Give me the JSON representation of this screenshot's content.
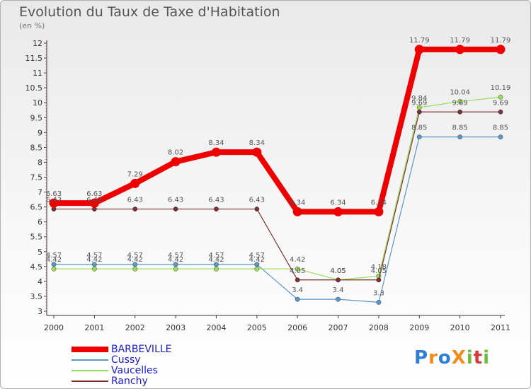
{
  "chart_data": {
    "type": "line",
    "title": "Evolution du Taux de Taxe d'Habitation",
    "unit_label": "(en %)",
    "x": [
      "2000",
      "2001",
      "2002",
      "2003",
      "2004",
      "2005",
      "2006",
      "2007",
      "2008",
      "2009",
      "2010",
      "2011"
    ],
    "ylim": [
      3,
      12
    ],
    "yticks": [
      3,
      3.5,
      4,
      4.5,
      5,
      5.5,
      6,
      6.5,
      7,
      7.5,
      8,
      8.5,
      9,
      9.5,
      10,
      10.5,
      11,
      11.5,
      12
    ],
    "grid": false,
    "legend_position": "bottom-left",
    "series": [
      {
        "name": "BARBEVILLE",
        "color": "#ee0000",
        "width": 8,
        "values": [
          6.63,
          6.63,
          7.29,
          8.02,
          8.34,
          8.34,
          6.34,
          6.34,
          6.34,
          11.79,
          11.79,
          11.79
        ]
      },
      {
        "name": "Cussy",
        "color": "#5a96c8",
        "width": 1.2,
        "values": [
          4.57,
          4.57,
          4.57,
          4.57,
          4.57,
          4.57,
          3.4,
          3.4,
          3.3,
          8.85,
          8.85,
          8.85
        ]
      },
      {
        "name": "Vaucelles",
        "color": "#99dd55",
        "width": 1.2,
        "values": [
          4.42,
          4.42,
          4.42,
          4.42,
          4.42,
          4.42,
          4.42,
          4.05,
          4.18,
          9.84,
          10.04,
          10.19
        ]
      },
      {
        "name": "Ranchy",
        "color": "#7a3030",
        "width": 1.2,
        "values": [
          6.43,
          6.43,
          6.43,
          6.43,
          6.43,
          6.43,
          4.05,
          4.05,
          4.05,
          9.69,
          9.69,
          9.69
        ]
      }
    ]
  },
  "logo": {
    "text": "ProXiti",
    "letters": [
      "P",
      "r",
      "o",
      "X",
      "i",
      "t",
      "i"
    ],
    "colors": [
      "#2b7fd6",
      "#f28c1b",
      "#2b7fd6",
      "#f28c1b",
      "#6bbf3a",
      "#d63a3a",
      "#6bbf3a"
    ]
  }
}
